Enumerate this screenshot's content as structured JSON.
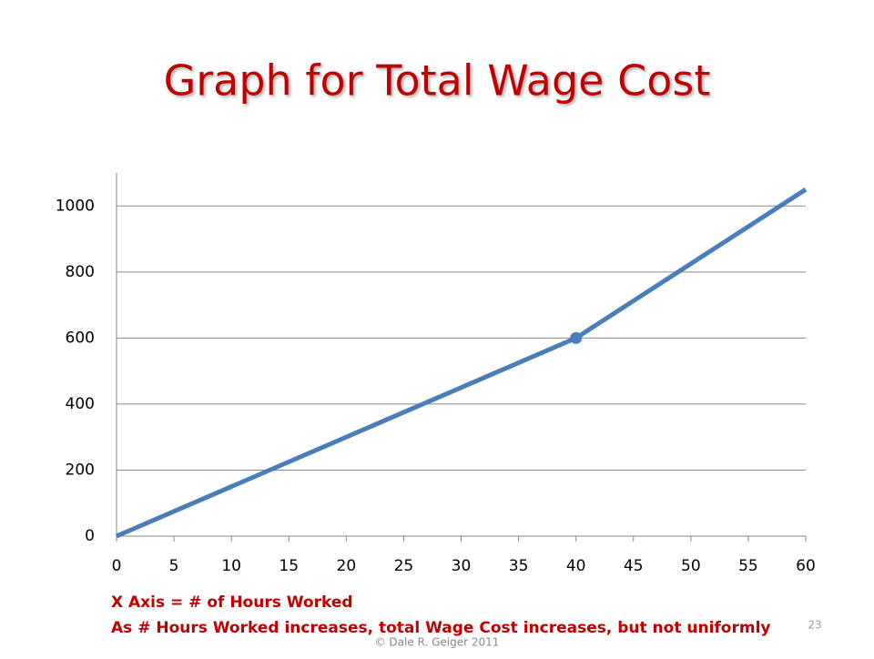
{
  "chart_data": {
    "type": "line",
    "title": "Graph for Total Wage Cost",
    "x": [
      0,
      5,
      10,
      15,
      20,
      25,
      30,
      35,
      40,
      45,
      50,
      55,
      60
    ],
    "values": [
      0,
      75,
      150,
      225,
      300,
      375,
      450,
      525,
      600,
      712.5,
      825,
      937.5,
      1050
    ],
    "color": "#4a7ebb",
    "highlight_index": 8,
    "xlim": [
      0,
      60
    ],
    "xticks": [
      0,
      5,
      10,
      15,
      20,
      25,
      30,
      35,
      40,
      45,
      50,
      55,
      60
    ],
    "ylim": [
      0,
      1100
    ],
    "yticks": [
      0,
      200,
      400,
      600,
      800,
      1000
    ],
    "grid": true,
    "notes": [
      "X Axis = # of Hours Worked",
      "As # Hours Worked increases, total Wage Cost increases, but not uniformly"
    ]
  },
  "page_number": "23",
  "footer": "© Dale R. Geiger 2011"
}
